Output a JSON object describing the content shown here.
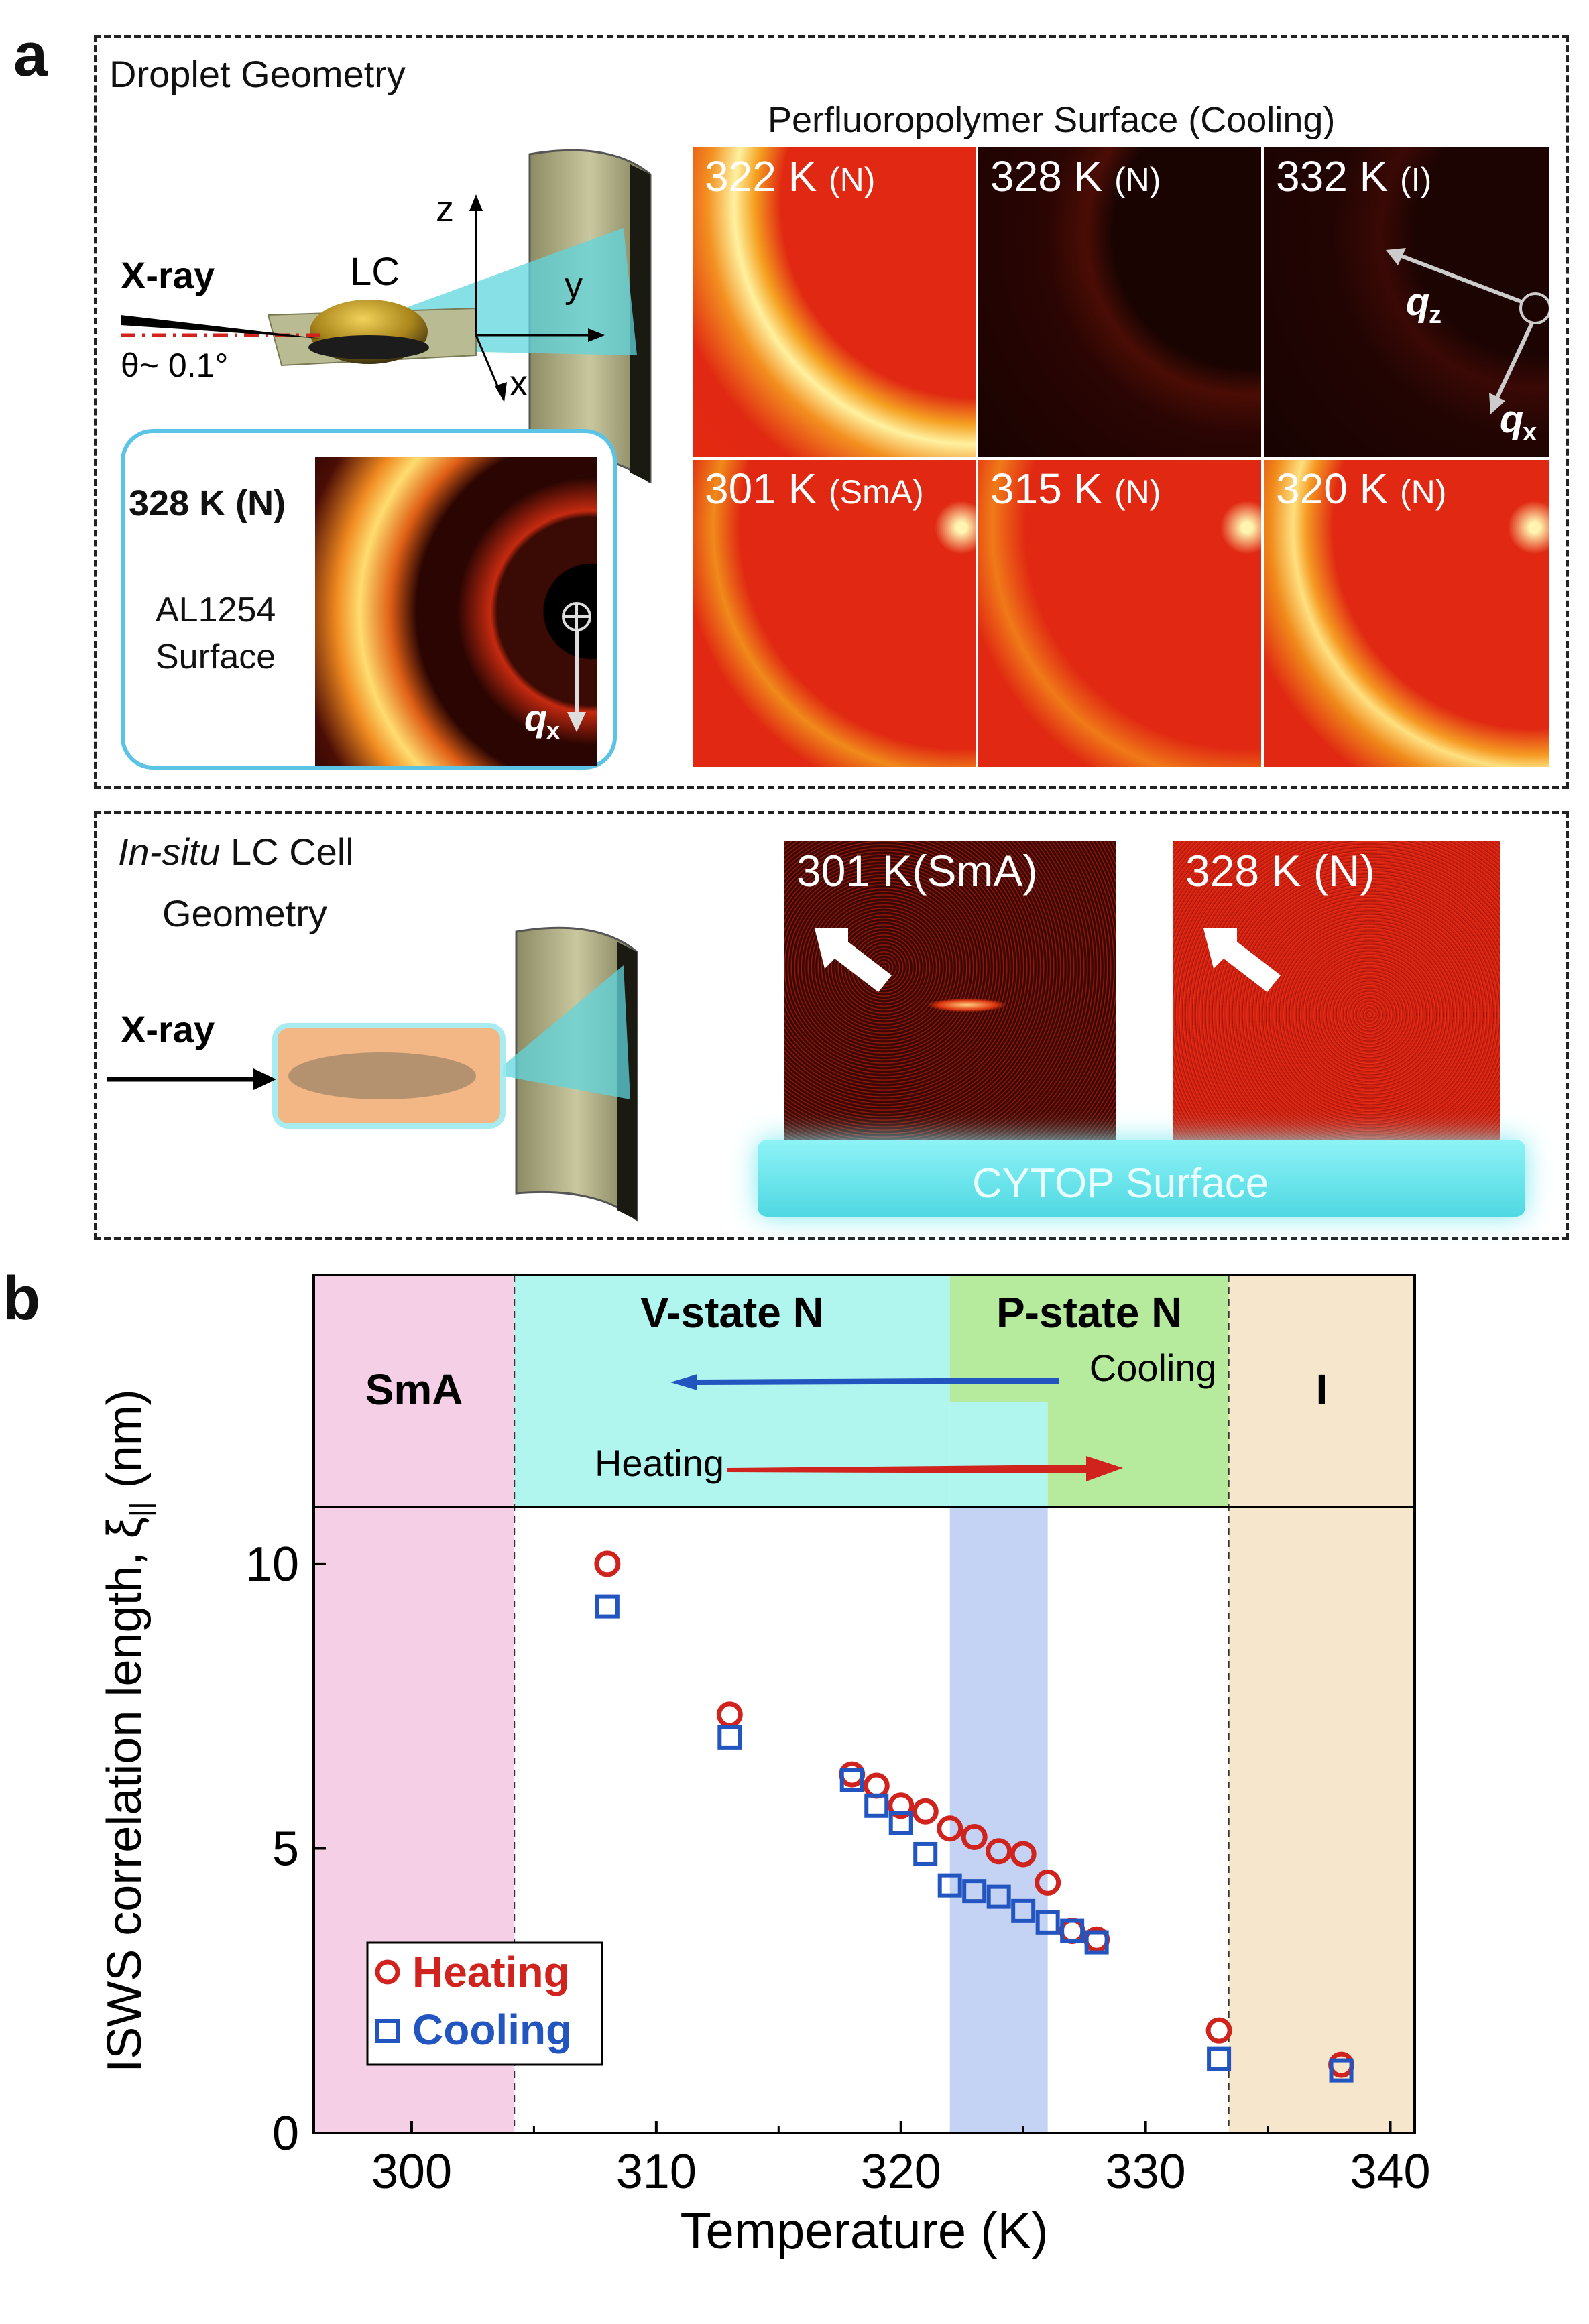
{
  "panel_a": {
    "letter": "a",
    "droplet": {
      "title": "Droplet Geometry",
      "xray_label": "X-ray",
      "lc_label": "LC",
      "angle_label": "θ~ 0.1°",
      "axis_z": "z",
      "axis_y": "y",
      "axis_x": "x",
      "inset": {
        "temp": "328 K (N)",
        "surface_line1": "AL1254",
        "surface_line2": "Surface",
        "q_label": "q",
        "q_sub": "x"
      }
    },
    "perfluoro": {
      "title": "Perfluoropolymer Surface (Cooling)",
      "tiles": [
        {
          "temp": "322 K",
          "phase": "(N)"
        },
        {
          "temp": "328 K",
          "phase": "(N)"
        },
        {
          "temp": "332 K",
          "phase": "(I)"
        },
        {
          "temp": "301 K",
          "phase": "(SmA)"
        },
        {
          "temp": "315 K",
          "phase": "(N)"
        },
        {
          "temp": "320 K",
          "phase": "(N)"
        }
      ],
      "qz_label": "q",
      "qz_sub": "z",
      "qx_label": "q",
      "qx_sub": "x"
    },
    "insitu": {
      "title_italic": "In-situ",
      "title_rest": " LC Cell",
      "title_line2": "Geometry",
      "xray_label": "X-ray",
      "tiles": [
        {
          "label": "301 K(SmA)"
        },
        {
          "label": "328 K (N)"
        }
      ],
      "surface_label": "CYTOP Surface"
    }
  },
  "panel_b": {
    "letter": "b",
    "colors": {
      "heating": "#d0231e",
      "cooling": "#2255c0",
      "sma": "#f4cfe6",
      "vstate": "#b0f5ee",
      "pstate": "#b6ea9c",
      "iso": "#f6e6cc",
      "overlap": "#c4d2f4"
    },
    "phase_labels": {
      "sma": "SmA",
      "vstate": "V-state N",
      "pstate": "P-state N",
      "iso": "I",
      "cooling": "Cooling",
      "heating": "Heating"
    }
  },
  "chart_data": {
    "type": "scatter",
    "xlabel": "Temperature (K)",
    "ylabel": "ISWS correlation length, ξ",
    "ylabel_sub": "||",
    "ylabel_unit": " (nm)",
    "xlim": [
      296,
      341
    ],
    "ylim": [
      0,
      11
    ],
    "xticks": [
      300,
      310,
      320,
      330,
      340
    ],
    "yticks": [
      0,
      5,
      10
    ],
    "phase_boundaries": {
      "sma_end": 304.2,
      "p_state_start": 322,
      "v_state_heating_end": 326,
      "iso_start": 333.4
    },
    "legend": [
      "Heating",
      "Cooling"
    ],
    "series": [
      {
        "name": "Heating",
        "marker": "circle",
        "x": [
          308,
          313,
          318,
          319,
          320,
          321,
          322,
          323,
          324,
          325,
          326,
          327,
          328,
          333,
          338
        ],
        "y": [
          10.0,
          7.35,
          6.3,
          6.1,
          5.75,
          5.65,
          5.35,
          5.2,
          4.95,
          4.9,
          4.4,
          3.55,
          3.4,
          1.8,
          1.2
        ]
      },
      {
        "name": "Cooling",
        "marker": "square",
        "x": [
          308,
          313,
          318,
          319,
          320,
          321,
          322,
          323,
          324,
          325,
          326,
          327,
          328,
          333,
          338
        ],
        "y": [
          9.25,
          6.95,
          6.2,
          5.75,
          5.45,
          4.9,
          4.35,
          4.25,
          4.15,
          3.9,
          3.7,
          3.55,
          3.35,
          1.3,
          1.1
        ]
      }
    ]
  }
}
